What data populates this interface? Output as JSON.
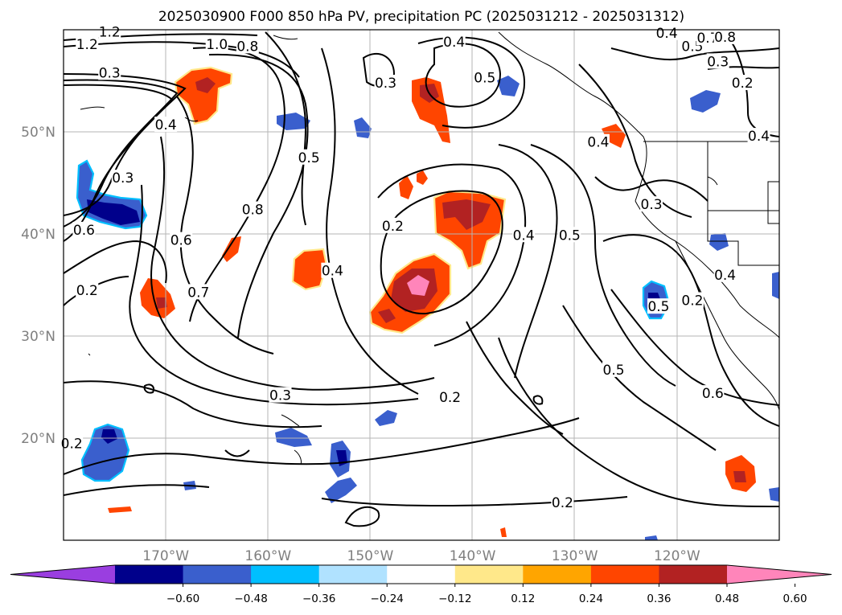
{
  "title": "2025030900 F000 850 hPa PV, precipitation PC (2025031212 - 2025031312)",
  "map": {
    "lon_range": [
      -180,
      -110
    ],
    "lat_range": [
      10,
      60
    ],
    "lon_ticks": [
      {
        "value": -170,
        "label": "170°W"
      },
      {
        "value": -160,
        "label": "160°W"
      },
      {
        "value": -150,
        "label": "150°W"
      },
      {
        "value": -140,
        "label": "140°W"
      },
      {
        "value": -130,
        "label": "130°W"
      },
      {
        "value": -120,
        "label": "120°W"
      }
    ],
    "lat_ticks": [
      {
        "value": 20,
        "label": "20°N"
      },
      {
        "value": 30,
        "label": "30°N"
      },
      {
        "value": 40,
        "label": "40°N"
      },
      {
        "value": 50,
        "label": "50°N"
      }
    ],
    "grid": true,
    "contour_labels": [
      {
        "text": "1.2",
        "lon": -177.7,
        "lat": 58.6
      },
      {
        "text": "1.2",
        "lon": -175.5,
        "lat": 59.8
      },
      {
        "text": "1.0",
        "lon": -165.0,
        "lat": 58.6
      },
      {
        "text": "0.8",
        "lon": -162.0,
        "lat": 58.4
      },
      {
        "text": "0.3",
        "lon": -175.5,
        "lat": 55.8
      },
      {
        "text": "0.4",
        "lon": -170.0,
        "lat": 50.7
      },
      {
        "text": "0.3",
        "lon": -174.2,
        "lat": 45.5
      },
      {
        "text": "0.6",
        "lon": -178.0,
        "lat": 40.4
      },
      {
        "text": "0.6",
        "lon": -168.5,
        "lat": 39.4
      },
      {
        "text": "0.8",
        "lon": -161.5,
        "lat": 42.4
      },
      {
        "text": "0.5",
        "lon": -156.0,
        "lat": 47.5
      },
      {
        "text": "0.7",
        "lon": -166.8,
        "lat": 34.3
      },
      {
        "text": "0.2",
        "lon": -177.7,
        "lat": 34.5
      },
      {
        "text": "0.4",
        "lon": -153.7,
        "lat": 36.4
      },
      {
        "text": "0.3",
        "lon": -148.5,
        "lat": 54.8
      },
      {
        "text": "0.4",
        "lon": -141.8,
        "lat": 58.8
      },
      {
        "text": "0.5",
        "lon": -138.8,
        "lat": 55.3
      },
      {
        "text": "0.2",
        "lon": -147.8,
        "lat": 40.8
      },
      {
        "text": "0.4",
        "lon": -135.0,
        "lat": 39.9
      },
      {
        "text": "0.5",
        "lon": -130.5,
        "lat": 39.9
      },
      {
        "text": "0.4",
        "lon": -127.7,
        "lat": 49.0
      },
      {
        "text": "0.3",
        "lon": -122.5,
        "lat": 42.9
      },
      {
        "text": "0.5",
        "lon": -121.8,
        "lat": 32.9
      },
      {
        "text": "0.5",
        "lon": -126.2,
        "lat": 26.7
      },
      {
        "text": "0.6",
        "lon": -116.5,
        "lat": 24.4
      },
      {
        "text": "0.2",
        "lon": -142.2,
        "lat": 24.0
      },
      {
        "text": "0.3",
        "lon": -158.8,
        "lat": 24.2
      },
      {
        "text": "0.2",
        "lon": -131.2,
        "lat": 13.7
      },
      {
        "text": "0.2",
        "lon": -179.2,
        "lat": 19.5
      },
      {
        "text": "0.4",
        "lon": -121.0,
        "lat": 59.7
      },
      {
        "text": "0.5",
        "lon": -118.5,
        "lat": 58.4
      },
      {
        "text": "0.7",
        "lon": -117.0,
        "lat": 59.2
      },
      {
        "text": "0.8",
        "lon": -115.3,
        "lat": 59.3
      },
      {
        "text": "0.3",
        "lon": -116.0,
        "lat": 56.9
      },
      {
        "text": "0.2",
        "lon": -113.6,
        "lat": 54.8
      },
      {
        "text": "0.4",
        "lon": -112.0,
        "lat": 49.6
      },
      {
        "text": "0.4",
        "lon": -115.3,
        "lat": 36.0
      },
      {
        "text": "0.2",
        "lon": -118.5,
        "lat": 33.5
      }
    ]
  },
  "colorbar": {
    "ticks": [
      "−0.60",
      "−0.48",
      "−0.36",
      "−0.24",
      "−0.12",
      "0.12",
      "0.24",
      "0.36",
      "0.48",
      "0.60"
    ],
    "colors": [
      "#9a3ee0",
      "#00008b",
      "#3a5fcd",
      "#00bfff",
      "#b0e2ff",
      "#ffffff",
      "#ffe88a",
      "#ffa500",
      "#ff4500",
      "#b22222",
      "#ff85ba"
    ]
  }
}
